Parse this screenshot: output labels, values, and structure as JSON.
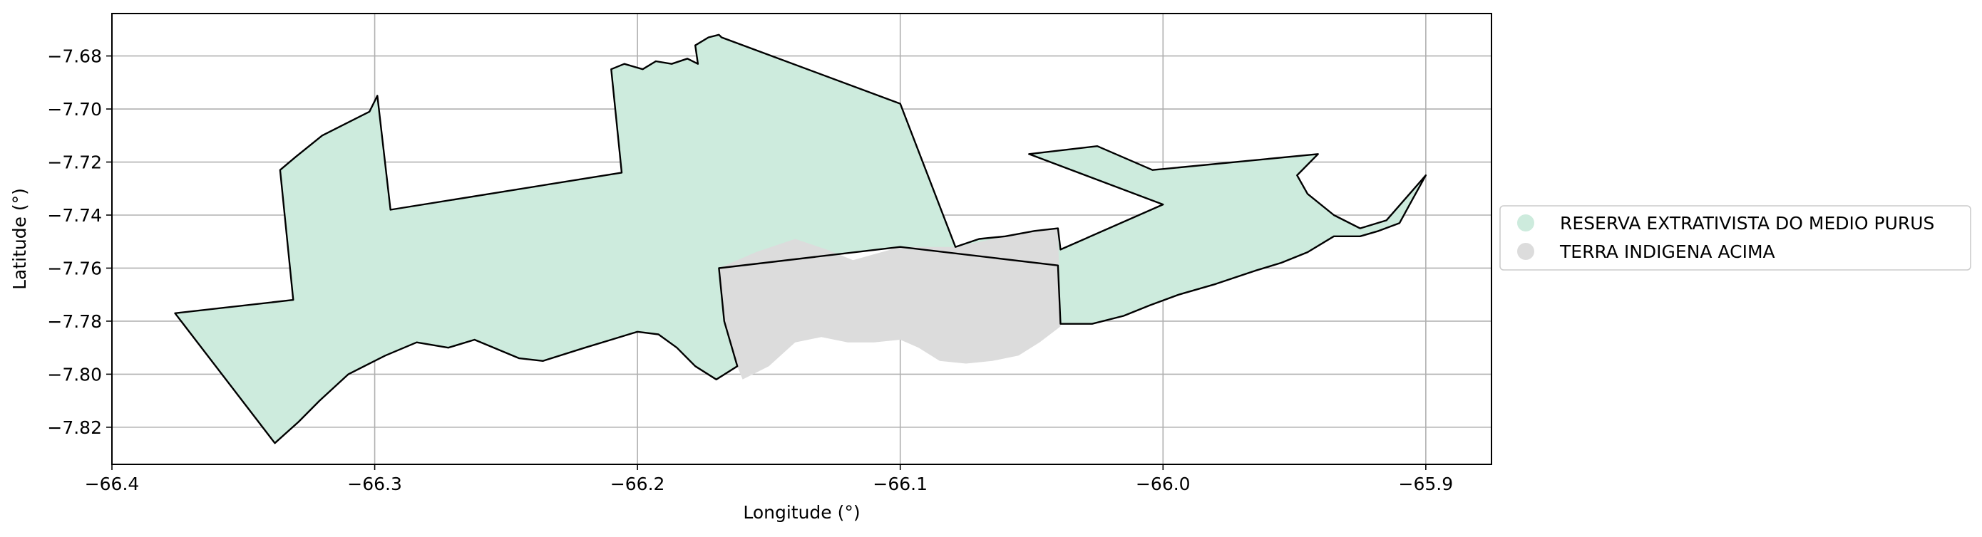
{
  "chart_data": {
    "type": "map",
    "xlabel": "Longitude (°)",
    "ylabel": "Latitude (°)",
    "xlim": [
      -66.4,
      -65.875
    ],
    "ylim": [
      -7.834,
      -7.664
    ],
    "x_ticks": [
      -66.4,
      -66.3,
      -66.2,
      -66.1,
      -66.0,
      -65.9
    ],
    "x_tick_labels": [
      "−66.4",
      "−66.3",
      "−66.2",
      "−66.1",
      "−66.0",
      "−65.9"
    ],
    "y_ticks": [
      -7.68,
      -7.7,
      -7.72,
      -7.74,
      -7.76,
      -7.78,
      -7.8,
      -7.82
    ],
    "y_tick_labels": [
      "−7.68",
      "−7.70",
      "−7.72",
      "−7.74",
      "−7.76",
      "−7.78",
      "−7.80",
      "−7.82"
    ],
    "grid": true,
    "legend_position": "right, outside plot",
    "series": [
      {
        "name": "RESERVA EXTRATIVISTA DO MEDIO PURUS",
        "color": "#cdebdd",
        "polygon": [
          [
            -66.376,
            -7.777
          ],
          [
            -66.331,
            -7.772
          ],
          [
            -66.336,
            -7.723
          ],
          [
            -66.33,
            -7.718
          ],
          [
            -66.32,
            -7.71
          ],
          [
            -66.31,
            -7.705
          ],
          [
            -66.302,
            -7.701
          ],
          [
            -66.299,
            -7.695
          ],
          [
            -66.294,
            -7.738
          ],
          [
            -66.206,
            -7.724
          ],
          [
            -66.21,
            -7.685
          ],
          [
            -66.205,
            -7.683
          ],
          [
            -66.198,
            -7.685
          ],
          [
            -66.193,
            -7.682
          ],
          [
            -66.187,
            -7.683
          ],
          [
            -66.181,
            -7.681
          ],
          [
            -66.177,
            -7.683
          ],
          [
            -66.178,
            -7.676
          ],
          [
            -66.173,
            -7.673
          ],
          [
            -66.169,
            -7.672
          ],
          [
            -66.168,
            -7.673
          ],
          [
            -66.1,
            -7.698
          ],
          [
            -66.079,
            -7.752
          ],
          [
            -66.07,
            -7.749
          ],
          [
            -66.06,
            -7.748
          ],
          [
            -66.049,
            -7.746
          ],
          [
            -66.04,
            -7.745
          ],
          [
            -66.039,
            -7.753
          ],
          [
            -66.0,
            -7.736
          ],
          [
            -66.051,
            -7.717
          ],
          [
            -66.025,
            -7.714
          ],
          [
            -66.004,
            -7.723
          ],
          [
            -65.941,
            -7.717
          ],
          [
            -65.949,
            -7.725
          ],
          [
            -65.945,
            -7.732
          ],
          [
            -65.935,
            -7.74
          ],
          [
            -65.925,
            -7.745
          ],
          [
            -65.915,
            -7.742
          ],
          [
            -65.9,
            -7.725
          ],
          [
            -65.905,
            -7.734
          ],
          [
            -65.91,
            -7.743
          ],
          [
            -65.918,
            -7.746
          ],
          [
            -65.925,
            -7.748
          ],
          [
            -65.935,
            -7.748
          ],
          [
            -65.945,
            -7.754
          ],
          [
            -65.955,
            -7.758
          ],
          [
            -65.965,
            -7.761
          ],
          [
            -65.98,
            -7.766
          ],
          [
            -65.994,
            -7.77
          ],
          [
            -66.005,
            -7.774
          ],
          [
            -66.015,
            -7.778
          ],
          [
            -66.027,
            -7.781
          ],
          [
            -66.039,
            -7.781
          ],
          [
            -66.04,
            -7.759
          ],
          [
            -66.1,
            -7.752
          ],
          [
            -66.169,
            -7.76
          ],
          [
            -66.167,
            -7.78
          ],
          [
            -66.162,
            -7.797
          ],
          [
            -66.17,
            -7.802
          ],
          [
            -66.178,
            -7.797
          ],
          [
            -66.185,
            -7.79
          ],
          [
            -66.192,
            -7.785
          ],
          [
            -66.2,
            -7.784
          ],
          [
            -66.21,
            -7.787
          ],
          [
            -66.22,
            -7.79
          ],
          [
            -66.236,
            -7.795
          ],
          [
            -66.245,
            -7.794
          ],
          [
            -66.262,
            -7.787
          ],
          [
            -66.272,
            -7.79
          ],
          [
            -66.284,
            -7.788
          ],
          [
            -66.296,
            -7.793
          ],
          [
            -66.31,
            -7.8
          ],
          [
            -66.321,
            -7.81
          ],
          [
            -66.329,
            -7.818
          ],
          [
            -66.338,
            -7.826
          ],
          [
            -66.376,
            -7.777
          ]
        ]
      },
      {
        "name": "TERRA INDIGENA ACIMA",
        "color": "#dcdcdc",
        "polygon": [
          [
            -66.169,
            -7.76
          ],
          [
            -66.155,
            -7.754
          ],
          [
            -66.14,
            -7.749
          ],
          [
            -66.128,
            -7.753
          ],
          [
            -66.118,
            -7.757
          ],
          [
            -66.1,
            -7.752
          ],
          [
            -66.079,
            -7.752
          ],
          [
            -66.06,
            -7.748
          ],
          [
            -66.04,
            -7.745
          ],
          [
            -66.039,
            -7.782
          ],
          [
            -66.047,
            -7.788
          ],
          [
            -66.055,
            -7.793
          ],
          [
            -66.065,
            -7.795
          ],
          [
            -66.075,
            -7.796
          ],
          [
            -66.085,
            -7.795
          ],
          [
            -66.093,
            -7.79
          ],
          [
            -66.1,
            -7.787
          ],
          [
            -66.11,
            -7.788
          ],
          [
            -66.12,
            -7.788
          ],
          [
            -66.13,
            -7.786
          ],
          [
            -66.14,
            -7.788
          ],
          [
            -66.15,
            -7.797
          ],
          [
            -66.16,
            -7.802
          ],
          [
            -66.162,
            -7.797
          ],
          [
            -66.167,
            -7.78
          ],
          [
            -66.169,
            -7.76
          ]
        ]
      }
    ]
  }
}
